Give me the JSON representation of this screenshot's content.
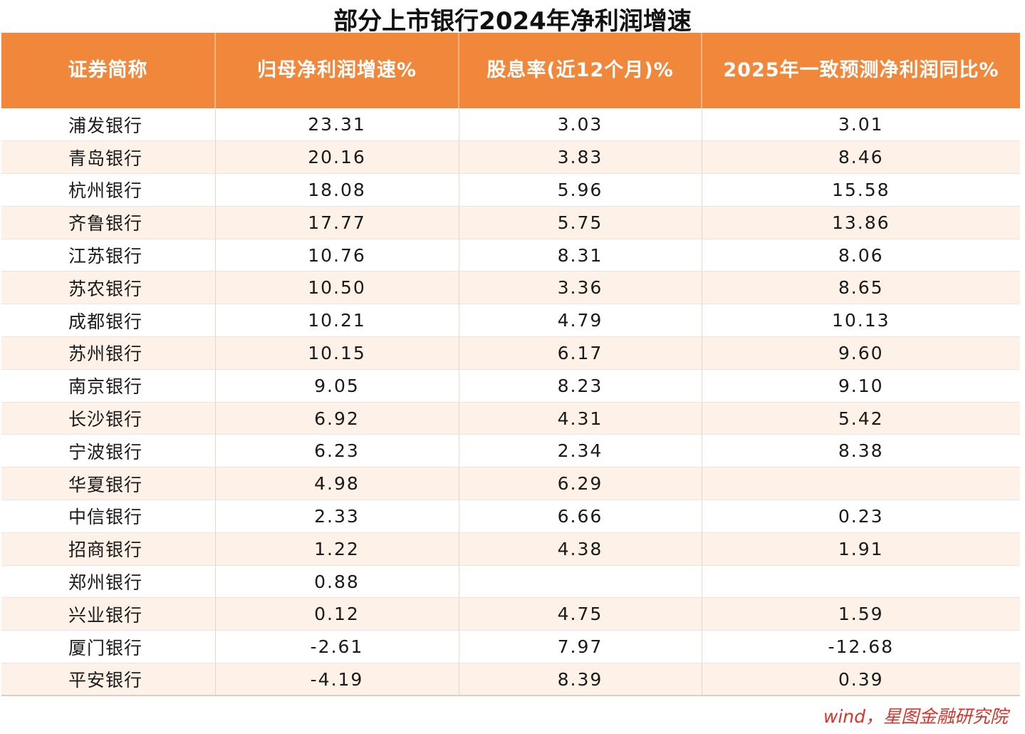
{
  "title": "部分上市银行2024年净利润增速",
  "source": "wind，星图金融研究院",
  "colors": {
    "header_bg": "#f0873a",
    "header_text": "#ffffff",
    "stripe": "#fdf1e8",
    "source_text": "#d8342a"
  },
  "chart_data": {
    "type": "table",
    "title": "部分上市银行2024年净利润增速",
    "columns": [
      "证券简称",
      "归母净利润增速%",
      "股息率(近12个月)%",
      "2025年一致预测净利润同比%"
    ],
    "rows": [
      [
        "浦发银行",
        "23.31",
        "3.03",
        "3.01"
      ],
      [
        "青岛银行",
        "20.16",
        "3.83",
        "8.46"
      ],
      [
        "杭州银行",
        "18.08",
        "5.96",
        "15.58"
      ],
      [
        "齐鲁银行",
        "17.77",
        "5.75",
        "13.86"
      ],
      [
        "江苏银行",
        "10.76",
        "8.31",
        "8.06"
      ],
      [
        "苏农银行",
        "10.50",
        "3.36",
        "8.65"
      ],
      [
        "成都银行",
        "10.21",
        "4.79",
        "10.13"
      ],
      [
        "苏州银行",
        "10.15",
        "6.17",
        "9.60"
      ],
      [
        "南京银行",
        "9.05",
        "8.23",
        "9.10"
      ],
      [
        "长沙银行",
        "6.92",
        "4.31",
        "5.42"
      ],
      [
        "宁波银行",
        "6.23",
        "2.34",
        "8.38"
      ],
      [
        "华夏银行",
        "4.98",
        "6.29",
        ""
      ],
      [
        "中信银行",
        "2.33",
        "6.66",
        "0.23"
      ],
      [
        "招商银行",
        "1.22",
        "4.38",
        "1.91"
      ],
      [
        "郑州银行",
        "0.88",
        "",
        ""
      ],
      [
        "兴业银行",
        "0.12",
        "4.75",
        "1.59"
      ],
      [
        "厦门银行",
        "-2.61",
        "7.97",
        "-12.68"
      ],
      [
        "平安银行",
        "-4.19",
        "8.39",
        "0.39"
      ]
    ]
  }
}
